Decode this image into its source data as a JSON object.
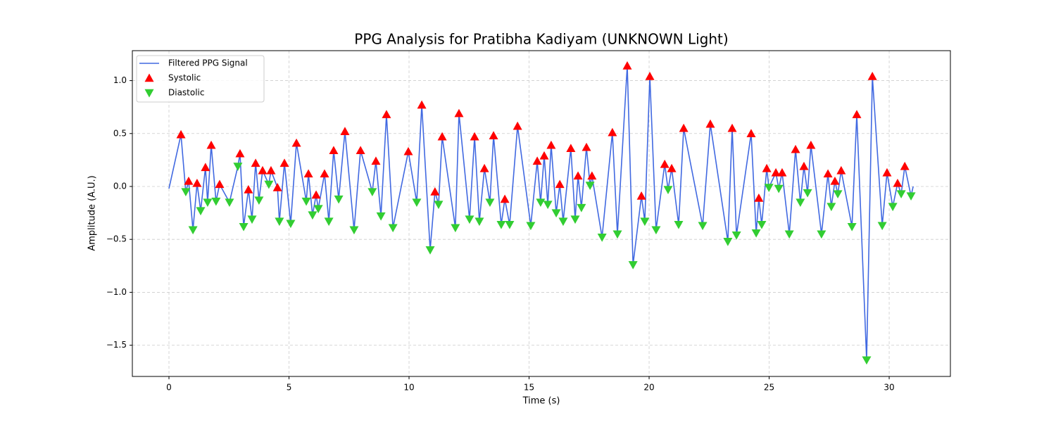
{
  "chart_data": {
    "type": "line",
    "title": "PPG Analysis for Pratibha Kadiyam (UNKNOWN Light)",
    "x_label": "Time (s)",
    "y_label": "Amplitude (A.U.)",
    "xlim": [
      -1.525,
      32.55
    ],
    "ylim": [
      -1.795,
      1.283
    ],
    "xticks": [
      0,
      5,
      10,
      15,
      20,
      25,
      30
    ],
    "yticks": [
      {
        "value": -1.5,
        "label": "−1.5"
      },
      {
        "value": -1.0,
        "label": "−1.0"
      },
      {
        "value": -0.5,
        "label": "−0.5"
      },
      {
        "value": 0,
        "label": "0.0"
      },
      0.5,
      {
        "value": 1.0,
        "label": "1.0"
      }
    ],
    "grid": true,
    "legend": "upper left",
    "series": [
      {
        "name": "Filtered PPG Signal",
        "color": "#4169e1",
        "mark": "line",
        "x": [
          0,
          0.5,
          0.7,
          0.82,
          1.0,
          1.17,
          1.32,
          1.52,
          1.61,
          1.76,
          1.96,
          2.11,
          2.52,
          2.87,
          2.96,
          3.11,
          3.31,
          3.46,
          3.61,
          3.75,
          3.9,
          4.16,
          4.25,
          4.52,
          4.6,
          4.81,
          5.07,
          5.31,
          5.72,
          5.81,
          5.98,
          6.13,
          6.22,
          6.48,
          6.66,
          6.86,
          7.07,
          7.33,
          7.71,
          7.98,
          8.47,
          8.62,
          8.83,
          9.06,
          9.33,
          9.97,
          10.32,
          10.53,
          10.88,
          11.08,
          11.23,
          11.38,
          11.93,
          12.08,
          12.52,
          12.73,
          12.93,
          13.14,
          13.37,
          13.52,
          13.84,
          13.99,
          14.19,
          14.52,
          15.07,
          15.34,
          15.48,
          15.63,
          15.78,
          15.92,
          16.13,
          16.28,
          16.42,
          16.74,
          16.92,
          17.04,
          17.18,
          17.39,
          17.54,
          17.62,
          18.04,
          18.47,
          18.68,
          19.09,
          19.33,
          19.68,
          19.82,
          20.03,
          20.29,
          20.65,
          20.79,
          20.94,
          21.23,
          21.44,
          22.23,
          22.55,
          23.28,
          23.46,
          23.64,
          24.25,
          24.46,
          24.57,
          24.69,
          24.9,
          24.99,
          25.28,
          25.4,
          25.54,
          25.84,
          26.1,
          26.3,
          26.45,
          26.6,
          26.74,
          27.18,
          27.45,
          27.59,
          27.74,
          27.86,
          28.0,
          28.45,
          28.65,
          29.06,
          29.3,
          29.71,
          29.91,
          30.15,
          30.35,
          30.5,
          30.65,
          30.91,
          31.0
        ],
        "values": [
          -0.02,
          0.49,
          -0.05,
          0.05,
          -0.41,
          0.03,
          -0.23,
          0.18,
          -0.15,
          0.39,
          -0.14,
          0.02,
          -0.15,
          0.19,
          0.31,
          -0.38,
          -0.03,
          -0.31,
          0.22,
          -0.13,
          0.15,
          0.02,
          0.15,
          -0.01,
          -0.33,
          0.22,
          -0.35,
          0.41,
          -0.14,
          0.12,
          -0.27,
          -0.08,
          -0.21,
          0.12,
          -0.33,
          0.34,
          -0.12,
          0.52,
          -0.41,
          0.34,
          -0.05,
          0.24,
          -0.28,
          0.68,
          -0.39,
          0.33,
          -0.15,
          0.77,
          -0.6,
          -0.05,
          -0.17,
          0.47,
          -0.39,
          0.69,
          -0.31,
          0.47,
          -0.33,
          0.17,
          -0.15,
          0.48,
          -0.36,
          -0.12,
          -0.36,
          0.57,
          -0.37,
          0.24,
          -0.15,
          0.29,
          -0.17,
          0.39,
          -0.25,
          0.02,
          -0.33,
          0.36,
          -0.31,
          0.1,
          -0.2,
          0.37,
          0.01,
          0.1,
          -0.48,
          0.51,
          -0.45,
          1.14,
          -0.74,
          -0.09,
          -0.33,
          1.04,
          -0.41,
          0.21,
          -0.03,
          0.17,
          -0.36,
          0.55,
          -0.37,
          0.59,
          -0.52,
          0.55,
          -0.46,
          0.5,
          -0.44,
          -0.11,
          -0.36,
          0.17,
          -0.01,
          0.13,
          -0.02,
          0.13,
          -0.45,
          0.35,
          -0.15,
          0.19,
          -0.06,
          0.39,
          -0.45,
          0.12,
          -0.19,
          0.05,
          -0.07,
          0.15,
          -0.38,
          0.68,
          -1.64,
          1.04,
          -0.37,
          0.13,
          -0.19,
          0.03,
          -0.07,
          0.19,
          -0.09,
          0.0
        ]
      },
      {
        "name": "Systolic",
        "color": "#ff0000",
        "mark": "triangle-up",
        "x": [
          0.5,
          0.82,
          1.17,
          1.52,
          1.76,
          2.11,
          2.96,
          3.31,
          3.61,
          3.9,
          4.25,
          4.52,
          4.81,
          5.31,
          5.81,
          6.13,
          6.48,
          6.86,
          7.33,
          7.98,
          8.62,
          9.06,
          9.97,
          10.53,
          11.08,
          11.38,
          12.08,
          12.73,
          13.14,
          13.52,
          13.99,
          14.52,
          15.34,
          15.63,
          15.92,
          16.28,
          16.74,
          17.04,
          17.39,
          17.62,
          18.47,
          19.09,
          19.68,
          20.03,
          20.65,
          20.94,
          21.44,
          22.55,
          23.46,
          24.25,
          24.57,
          24.9,
          25.28,
          25.54,
          26.1,
          26.45,
          26.74,
          27.45,
          27.74,
          28.0,
          28.65,
          29.3,
          29.91,
          30.35,
          30.65
        ],
        "values": [
          0.49,
          0.05,
          0.03,
          0.18,
          0.39,
          0.02,
          0.31,
          -0.03,
          0.22,
          0.15,
          0.15,
          -0.01,
          0.22,
          0.41,
          0.12,
          -0.08,
          0.12,
          0.34,
          0.52,
          0.34,
          0.24,
          0.68,
          0.33,
          0.77,
          -0.05,
          0.47,
          0.69,
          0.47,
          0.17,
          0.48,
          -0.12,
          0.57,
          0.24,
          0.29,
          0.39,
          0.02,
          0.36,
          0.1,
          0.37,
          0.1,
          0.51,
          1.14,
          -0.09,
          1.04,
          0.21,
          0.17,
          0.55,
          0.59,
          0.55,
          0.5,
          -0.11,
          0.17,
          0.13,
          0.13,
          0.35,
          0.19,
          0.39,
          0.12,
          0.05,
          0.15,
          0.68,
          1.04,
          0.13,
          0.03,
          0.19
        ]
      },
      {
        "name": "Diastolic",
        "color": "#32cd32",
        "mark": "triangle-down",
        "x": [
          0.7,
          1.0,
          1.32,
          1.61,
          1.96,
          2.52,
          2.87,
          3.11,
          3.46,
          3.75,
          4.16,
          4.6,
          5.07,
          5.72,
          5.98,
          6.22,
          6.66,
          7.07,
          7.71,
          8.47,
          8.83,
          9.33,
          10.32,
          10.88,
          11.23,
          11.93,
          12.52,
          12.93,
          13.37,
          13.84,
          14.19,
          15.07,
          15.48,
          15.78,
          16.13,
          16.42,
          16.92,
          17.18,
          17.54,
          18.04,
          18.68,
          19.33,
          19.82,
          20.29,
          20.79,
          21.23,
          22.23,
          23.28,
          23.64,
          24.46,
          24.69,
          24.99,
          25.4,
          25.84,
          26.3,
          26.6,
          27.18,
          27.59,
          27.86,
          28.45,
          29.06,
          29.71,
          30.15,
          30.5,
          30.91
        ],
        "values": [
          -0.05,
          -0.41,
          -0.23,
          -0.15,
          -0.14,
          -0.15,
          0.19,
          -0.38,
          -0.31,
          -0.13,
          0.02,
          -0.33,
          -0.35,
          -0.14,
          -0.27,
          -0.21,
          -0.33,
          -0.12,
          -0.41,
          -0.05,
          -0.28,
          -0.39,
          -0.15,
          -0.6,
          -0.17,
          -0.39,
          -0.31,
          -0.33,
          -0.15,
          -0.36,
          -0.36,
          -0.37,
          -0.15,
          -0.17,
          -0.25,
          -0.33,
          -0.31,
          -0.2,
          0.01,
          -0.48,
          -0.45,
          -0.74,
          -0.33,
          -0.41,
          -0.03,
          -0.36,
          -0.37,
          -0.52,
          -0.46,
          -0.44,
          -0.36,
          -0.01,
          -0.02,
          -0.45,
          -0.15,
          -0.06,
          -0.45,
          -0.19,
          -0.07,
          -0.38,
          -1.64,
          -0.37,
          -0.19,
          -0.07,
          -0.09
        ]
      }
    ]
  }
}
